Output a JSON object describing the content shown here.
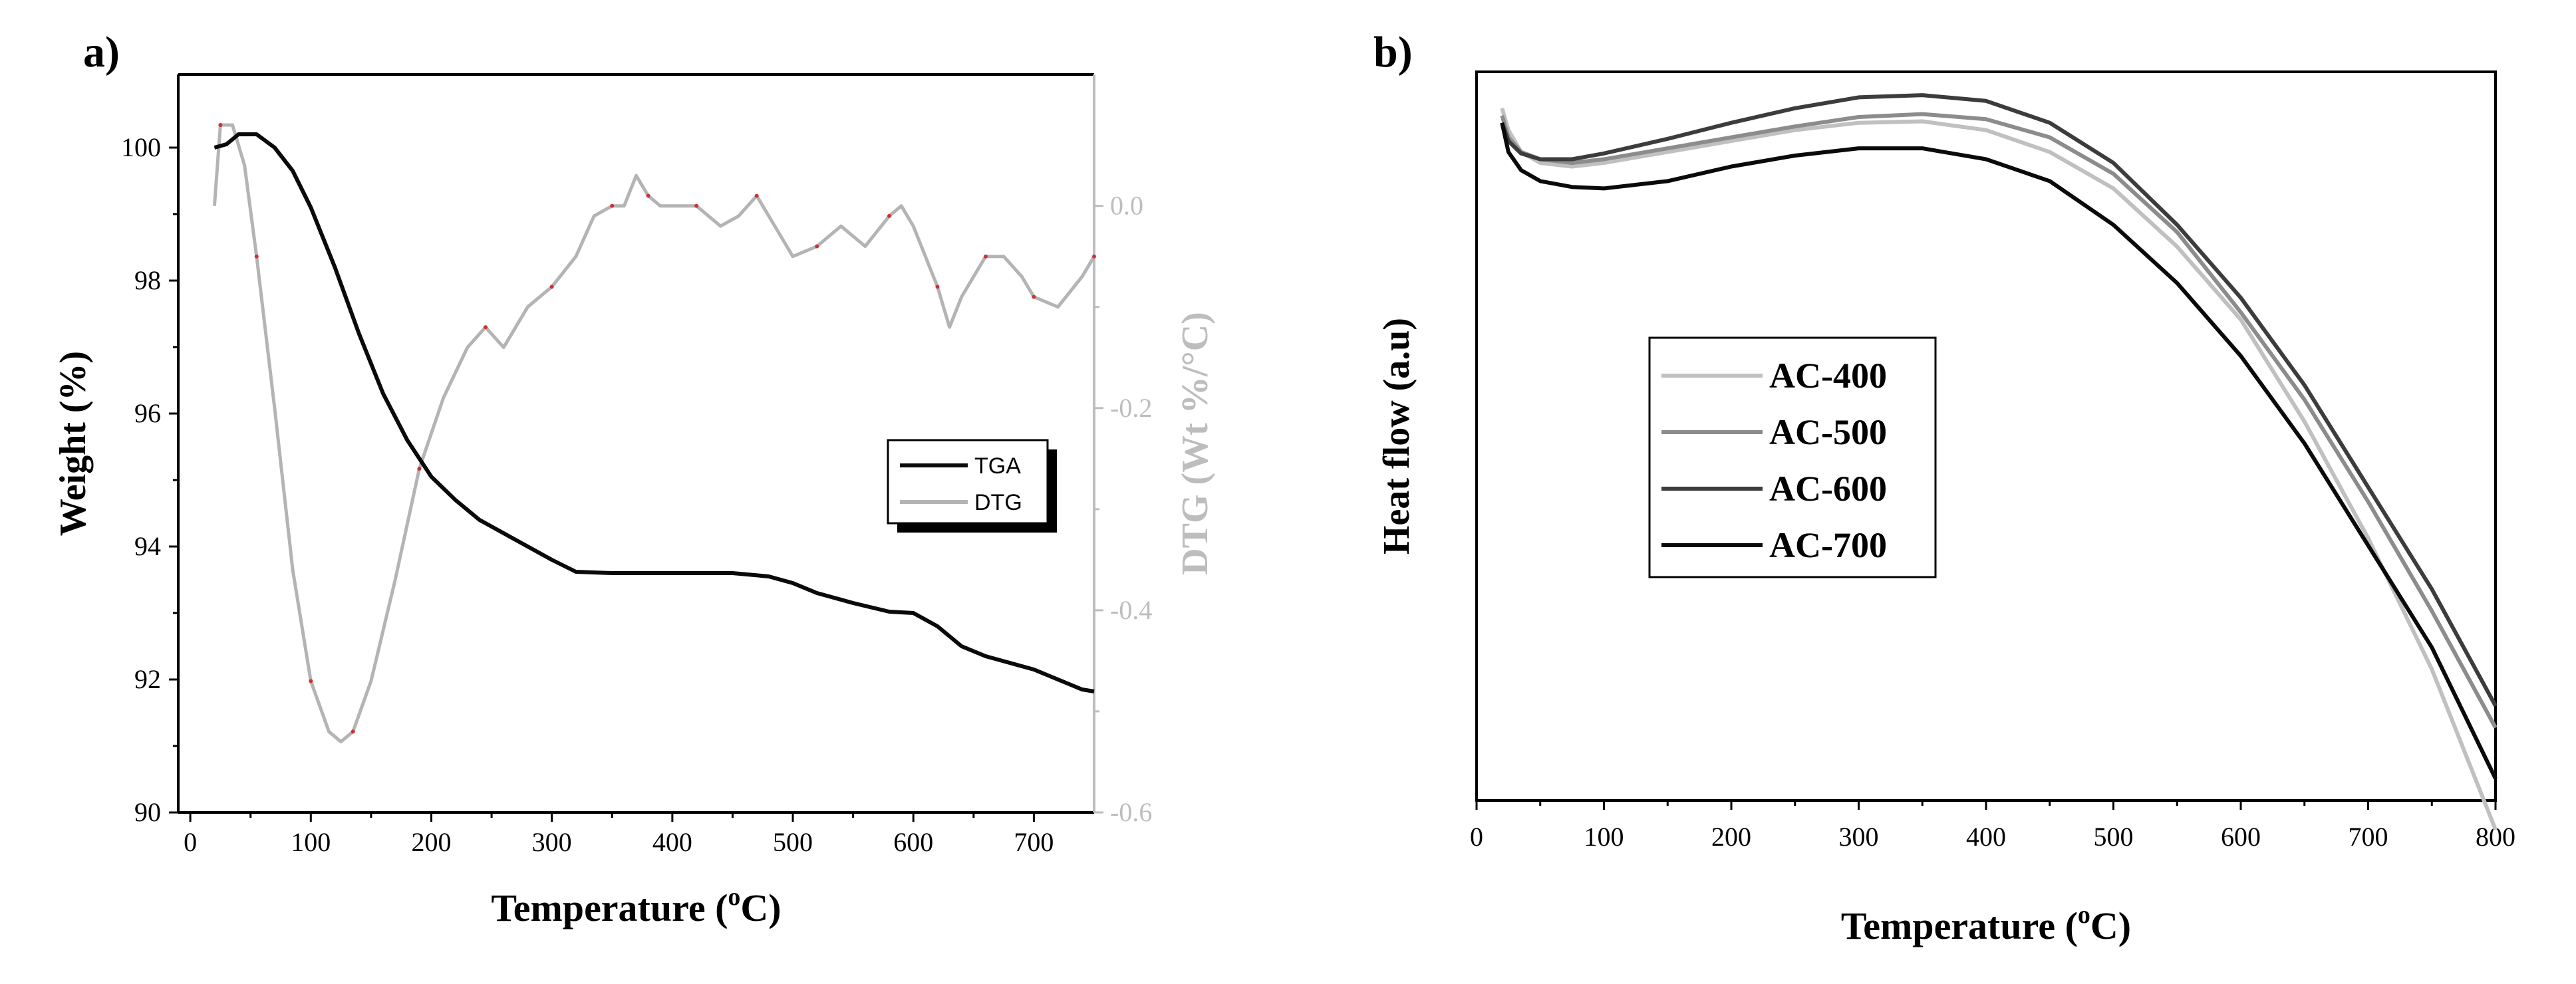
{
  "panels": {
    "a": "a)",
    "b": "b)"
  },
  "colors": {
    "tga": "#0a0a0a",
    "dtg": "#b4b4b4",
    "dtg_dots": "#d03030",
    "dtg_axis": "#bdbdbd",
    "ac400": "#c0c0c0",
    "ac500": "#8c8c8c",
    "ac600": "#3c3c3c",
    "ac700": "#0a0a0a"
  },
  "chart_data": [
    {
      "id": "a",
      "type": "line",
      "xlabel_main": "Temperature (",
      "xlabel_sup": "o",
      "xlabel_tail": "C)",
      "ylabel": "Weight (%)",
      "y2label": "DTG (Wt %/°C)",
      "xlim": [
        -10,
        750
      ],
      "ylim": [
        90,
        101.1
      ],
      "y2lim": [
        -0.6,
        0.13
      ],
      "xticks": [
        "0",
        "100",
        "200",
        "300",
        "400",
        "500",
        "600",
        "700"
      ],
      "yticks": [
        "90",
        "92",
        "94",
        "96",
        "98",
        "100"
      ],
      "y2ticks": [
        "-0.6",
        "-0.4",
        "-0.2",
        "0.0"
      ],
      "legend": {
        "position": "right",
        "entries": [
          "TGA",
          "DTG"
        ]
      },
      "series": [
        {
          "name": "TGA",
          "axis": "left",
          "x": [
            20,
            30,
            40,
            55,
            70,
            85,
            100,
            120,
            140,
            160,
            180,
            200,
            220,
            240,
            260,
            280,
            300,
            320,
            350,
            400,
            450,
            480,
            500,
            520,
            550,
            580,
            600,
            620,
            640,
            660,
            680,
            700,
            720,
            740,
            750
          ],
          "y": [
            100.0,
            100.05,
            100.2,
            100.2,
            100.0,
            99.65,
            99.1,
            98.2,
            97.2,
            96.3,
            95.6,
            95.05,
            94.7,
            94.4,
            94.2,
            94.0,
            93.8,
            93.62,
            93.6,
            93.6,
            93.6,
            93.55,
            93.45,
            93.3,
            93.15,
            93.02,
            93.0,
            92.8,
            92.5,
            92.35,
            92.25,
            92.15,
            92.0,
            91.85,
            91.82
          ]
        },
        {
          "name": "DTG",
          "axis": "right",
          "x": [
            20,
            25,
            35,
            45,
            55,
            70,
            85,
            100,
            115,
            125,
            135,
            150,
            170,
            190,
            210,
            230,
            245,
            260,
            280,
            300,
            320,
            335,
            350,
            360,
            370,
            380,
            390,
            400,
            420,
            440,
            455,
            470,
            485,
            500,
            520,
            540,
            560,
            580,
            590,
            600,
            620,
            630,
            640,
            660,
            675,
            690,
            700,
            720,
            740,
            750
          ],
          "y": [
            0.0,
            0.08,
            0.08,
            0.04,
            -0.05,
            -0.2,
            -0.36,
            -0.47,
            -0.52,
            -0.53,
            -0.52,
            -0.47,
            -0.37,
            -0.26,
            -0.19,
            -0.14,
            -0.12,
            -0.14,
            -0.1,
            -0.08,
            -0.05,
            -0.01,
            0.0,
            0.0,
            0.03,
            0.01,
            0.0,
            0.0,
            0.0,
            -0.02,
            -0.01,
            0.01,
            -0.02,
            -0.05,
            -0.04,
            -0.02,
            -0.04,
            -0.01,
            0.0,
            -0.02,
            -0.08,
            -0.12,
            -0.09,
            -0.05,
            -0.05,
            -0.07,
            -0.09,
            -0.1,
            -0.07,
            -0.05
          ]
        }
      ]
    },
    {
      "id": "b",
      "type": "line",
      "xlabel_main": "Temperature (",
      "xlabel_sup": "o",
      "xlabel_tail": "C)",
      "ylabel": "Heat flow (a.u)",
      "xlim": [
        0,
        800
      ],
      "ylim": [
        0,
        100
      ],
      "xticks": [
        "0",
        "100",
        "200",
        "300",
        "400",
        "500",
        "600",
        "700",
        "800"
      ],
      "legend": {
        "position": "center-left",
        "entries": [
          "AC-400",
          "AC-500",
          "AC-600",
          "AC-700"
        ]
      },
      "series": [
        {
          "name": "AC-400",
          "x": [
            20,
            25,
            35,
            50,
            75,
            100,
            150,
            200,
            250,
            300,
            350,
            400,
            450,
            500,
            550,
            600,
            650,
            700,
            750,
            800
          ],
          "y": [
            95,
            92,
            89,
            87.5,
            87,
            87.5,
            89,
            90.5,
            92,
            93,
            93.2,
            92,
            89,
            84,
            76,
            66,
            52,
            36,
            18,
            -4
          ]
        },
        {
          "name": "AC-500",
          "x": [
            20,
            25,
            35,
            50,
            75,
            100,
            150,
            200,
            250,
            300,
            350,
            400,
            450,
            500,
            550,
            600,
            650,
            700,
            750,
            800
          ],
          "y": [
            94,
            91,
            89,
            88,
            87.5,
            88,
            89.5,
            91,
            92.5,
            93.8,
            94.2,
            93.5,
            91,
            86,
            78,
            67,
            55,
            41,
            26,
            10
          ]
        },
        {
          "name": "AC-600",
          "x": [
            20,
            25,
            35,
            50,
            75,
            100,
            150,
            200,
            250,
            300,
            350,
            400,
            450,
            500,
            550,
            600,
            650,
            700,
            750,
            800
          ],
          "y": [
            93,
            90.5,
            88.8,
            88,
            88,
            88.8,
            90.8,
            93,
            95,
            96.5,
            96.8,
            96,
            93,
            87.5,
            79,
            69,
            57,
            43,
            29,
            13
          ]
        },
        {
          "name": "AC-700",
          "x": [
            20,
            25,
            35,
            50,
            75,
            100,
            150,
            200,
            250,
            300,
            350,
            400,
            450,
            500,
            550,
            600,
            650,
            700,
            750,
            800
          ],
          "y": [
            93,
            89,
            86.5,
            85,
            84.2,
            84,
            85,
            87,
            88.5,
            89.5,
            89.5,
            88,
            85,
            79,
            71,
            61,
            49,
            35,
            21,
            3
          ]
        }
      ]
    }
  ]
}
